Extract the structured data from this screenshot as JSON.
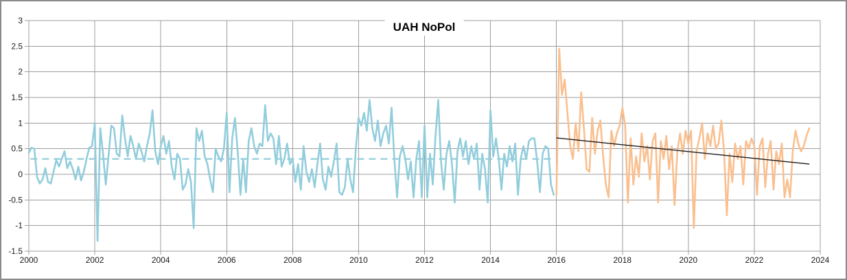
{
  "chart_data": {
    "type": "line",
    "title": "UAH NoPol",
    "subtitle": "",
    "legend": "none",
    "grid": true,
    "x_axis": {
      "min": 2000,
      "max": 2024,
      "tick_step": 2,
      "ticks": [
        2000,
        2002,
        2004,
        2006,
        2008,
        2010,
        2012,
        2014,
        2016,
        2018,
        2020,
        2022,
        2024
      ],
      "tick_labels": [
        "2000",
        "2002",
        "2004",
        "2006",
        "2008",
        "2010",
        "2012",
        "2014",
        "2016",
        "2018",
        "2020",
        "2022",
        "2024"
      ]
    },
    "y_axis": {
      "min": -1.5,
      "max": 3,
      "tick_step": 0.5,
      "ticks": [
        3,
        2.5,
        2,
        1.5,
        1,
        0.5,
        0,
        -0.5,
        -1,
        -1.5
      ],
      "tick_labels": [
        "3",
        "2.5",
        "2",
        "1.5",
        "1",
        "0.5",
        "0",
        "-0.5",
        "-1",
        "-1.5"
      ]
    },
    "series": [
      {
        "name": "uah-nopol-monthly-2000-2015",
        "color": "#92CDDC",
        "start_year": 2000,
        "points_per_year": 12,
        "values": [
          0.42,
          0.52,
          0.5,
          -0.05,
          -0.18,
          -0.1,
          0.12,
          -0.15,
          -0.18,
          0.05,
          0.28,
          0.15,
          0.3,
          0.45,
          0.12,
          0.25,
          0.1,
          -0.1,
          0.15,
          -0.12,
          0.05,
          0.3,
          0.52,
          0.55,
          1.0,
          -1.3,
          0.9,
          0.4,
          -0.2,
          0.35,
          0.95,
          0.9,
          0.4,
          0.35,
          1.15,
          0.7,
          0.35,
          0.75,
          0.55,
          0.3,
          0.6,
          0.45,
          0.25,
          0.55,
          0.8,
          1.25,
          0.45,
          0.2,
          0.55,
          0.75,
          0.4,
          0.65,
          0.15,
          -0.1,
          0.4,
          0.3,
          -0.3,
          -0.2,
          0.1,
          -0.15,
          -1.05,
          0.9,
          0.65,
          0.85,
          0.35,
          0.2,
          -0.1,
          -0.35,
          0.5,
          0.35,
          0.25,
          0.5,
          1.2,
          -0.35,
          0.7,
          1.1,
          0.45,
          -0.4,
          0.3,
          -0.35,
          0.65,
          0.9,
          0.55,
          0.4,
          0.6,
          0.55,
          1.35,
          0.65,
          0.8,
          0.7,
          0.2,
          0.75,
          0.15,
          0.3,
          0.6,
          0.2,
          0.3,
          -0.15,
          0.2,
          -0.3,
          0.55,
          0.05,
          -0.15,
          0.1,
          -0.25,
          0.2,
          0.6,
          -0.1,
          -0.3,
          0.15,
          -0.05,
          0.25,
          0.6,
          -0.35,
          -0.4,
          -0.25,
          0.3,
          -0.1,
          -0.35,
          0.5,
          1.1,
          0.95,
          1.2,
          0.85,
          1.45,
          0.9,
          0.65,
          1.05,
          0.55,
          0.8,
          0.95,
          0.6,
          1.3,
          0.3,
          -0.45,
          0.35,
          0.55,
          0.3,
          -0.1,
          0.25,
          -0.45,
          0.3,
          0.65,
          -0.45,
          0.95,
          -0.45,
          0.4,
          -0.2,
          0.75,
          1.45,
          0.25,
          -0.3,
          0.4,
          0.65,
          0.2,
          -0.55,
          0.45,
          0.7,
          0.35,
          0.65,
          0.2,
          0.55,
          0.3,
          0.6,
          -0.3,
          0.4,
          0.1,
          -0.55,
          1.25,
          0.35,
          0.7,
          0.3,
          -0.3,
          0.4,
          0.15,
          0.55,
          0.25,
          0.6,
          -0.4,
          0.3,
          0.55,
          0.3,
          0.65,
          0.7,
          0.7,
          0.25,
          -0.35,
          0.4,
          0.55,
          0.5,
          -0.2,
          -0.4
        ]
      },
      {
        "name": "uah-nopol-monthly-2016-2023",
        "color": "#FABF8F",
        "start_year": 2016,
        "points_per_year": 12,
        "values": [
          -0.4,
          2.45,
          1.55,
          1.85,
          1.2,
          0.55,
          0.3,
          1.0,
          0.45,
          1.6,
          0.9,
          0.1,
          0.05,
          1.1,
          0.4,
          0.85,
          1.05,
          0.35,
          -0.2,
          -0.45,
          0.85,
          0.55,
          0.8,
          0.95,
          1.3,
          0.95,
          -0.55,
          0.7,
          -0.2,
          0.35,
          -0.05,
          0.8,
          0.25,
          0.55,
          -0.1,
          0.65,
          0.8,
          -0.55,
          0.65,
          0.3,
          0.75,
          0.1,
          0.55,
          -0.6,
          0.45,
          0.8,
          0.4,
          0.85,
          0.6,
          0.85,
          -1.05,
          0.45,
          0.7,
          1.0,
          0.3,
          0.8,
          0.55,
          0.95,
          0.5,
          0.6,
          1.05,
          0.45,
          -0.8,
          0.4,
          -0.15,
          0.6,
          0.3,
          0.55,
          -0.2,
          0.65,
          0.5,
          0.7,
          0.55,
          -0.4,
          0.55,
          0.7,
          -0.25,
          0.4,
          0.65,
          -0.3,
          0.45,
          0.2,
          0.6,
          -0.45,
          -0.1,
          -0.45,
          0.45,
          0.85,
          0.6,
          0.45,
          0.55,
          0.75,
          0.9
        ]
      }
    ],
    "reference_lines": [
      {
        "name": "mean-line-2000-2015",
        "style": "dashed",
        "color": "#92CDDC",
        "x1": 2000.05,
        "y1": 0.3,
        "x2": 2015.97,
        "y2": 0.3
      },
      {
        "name": "trend-line-2016-2023",
        "style": "solid",
        "color": "#1A1A1A",
        "x1": 2016.0,
        "y1": 0.71,
        "x2": 2023.67,
        "y2": 0.2
      }
    ],
    "colors": {
      "pre2016_line": "#92CDDC",
      "post2016_line": "#FABF8F",
      "trend_line": "#1A1A1A",
      "gridline": "#9C9C9C",
      "frame_border": "#8A8A8A",
      "background": "#FFFFFF",
      "tick_label": "#1A1A1A",
      "title": "#000000"
    }
  }
}
